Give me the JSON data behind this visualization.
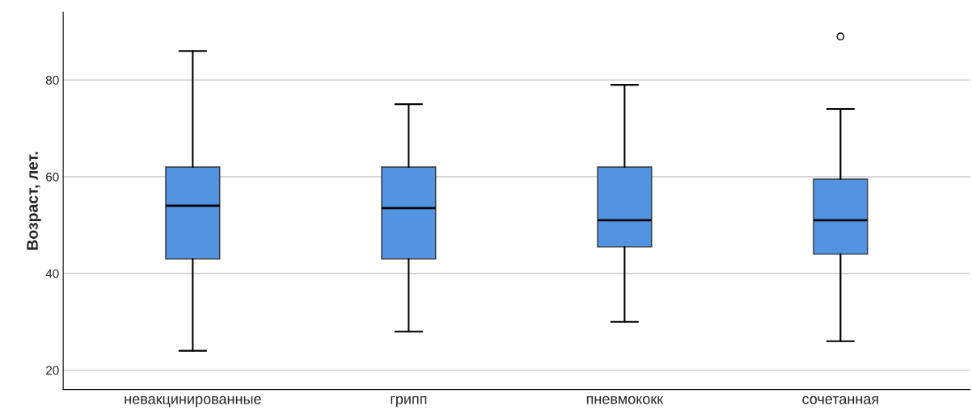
{
  "chart_data": {
    "type": "box",
    "ylabel": "Возраст, лет.",
    "categories": [
      "невакцинированные",
      "грипп",
      "пневмококк",
      "сочетанная"
    ],
    "color": "#5294e2",
    "boxes": [
      {
        "low": 24,
        "q1": 43,
        "median": 54,
        "q3": 62,
        "high": 86
      },
      {
        "low": 28,
        "q1": 43,
        "median": 53.5,
        "q3": 62,
        "high": 75
      },
      {
        "low": 30,
        "q1": 45.5,
        "median": 51,
        "q3": 62,
        "high": 79
      },
      {
        "low": 26,
        "q1": 44,
        "median": 51,
        "q3": 59.5,
        "high": 74,
        "outliers": [
          89
        ]
      }
    ],
    "ylim": [
      16,
      94
    ],
    "yticks": [
      20,
      40,
      60,
      80
    ],
    "grid": "y"
  }
}
